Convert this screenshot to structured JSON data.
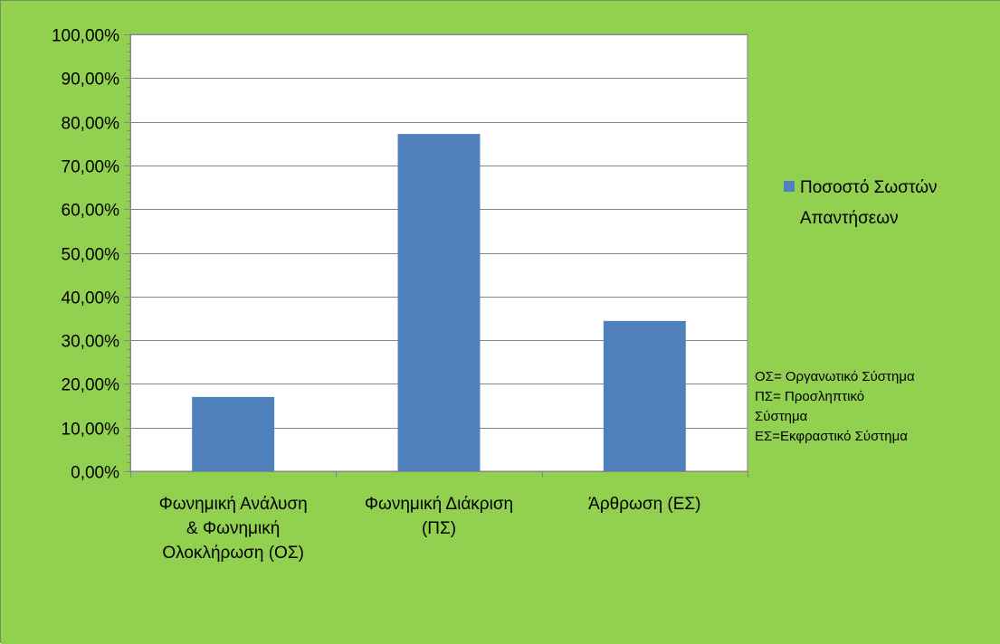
{
  "colors": {
    "chart_background": "#92D050",
    "plot_background": "#FFFFFF",
    "bar": "#4F81BD",
    "grid": "#868686",
    "axis": "#868686"
  },
  "chart_data": {
    "type": "bar",
    "categories": [
      [
        "Φωνημική Ανάλυση",
        "& Φωνημική",
        "Ολοκλήρωση (ΟΣ)"
      ],
      [
        "Φωνημική Διάκριση",
        "(ΠΣ)"
      ],
      [
        "Άρθρωση (ΕΣ)"
      ]
    ],
    "series": [
      {
        "name": [
          "Ποσοστό Σωστών",
          "Απαντήσεων"
        ],
        "values": [
          0.17,
          0.772,
          0.344
        ]
      }
    ],
    "ylim": [
      0,
      1
    ],
    "ytick_step": 0.1,
    "ytick_labels": [
      "0,00%",
      "10,00%",
      "20,00%",
      "30,00%",
      "40,00%",
      "50,00%",
      "60,00%",
      "70,00%",
      "80,00%",
      "90,00%",
      "100,00%"
    ],
    "grid": true,
    "legend_position": "right",
    "annotations": [
      "ΟΣ= Οργανωτικό  Σύστημα",
      "ΠΣ= Προσληπτικό",
      "Σύστημα",
      "ΕΣ=Εκφραστικό Σύστημα"
    ]
  }
}
